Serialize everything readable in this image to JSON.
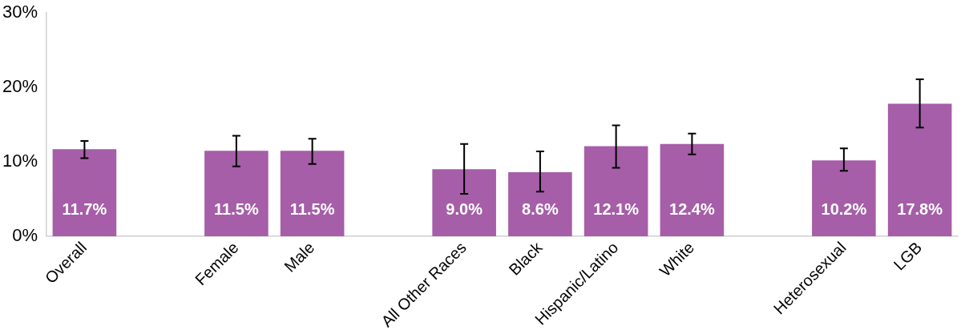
{
  "chart_data": {
    "type": "bar",
    "categories": [
      "Overall",
      null,
      "Female",
      "Male",
      null,
      "All Other Races",
      "Black",
      "Hispanic/Latino",
      "White",
      null,
      "Heterosexual",
      "LGB"
    ],
    "values": [
      11.7,
      null,
      11.5,
      11.5,
      null,
      9.0,
      8.6,
      12.1,
      12.4,
      null,
      10.2,
      17.8
    ],
    "value_labels": [
      "11.7%",
      null,
      "11.5%",
      "11.5%",
      null,
      "9.0%",
      "8.6%",
      "12.1%",
      "12.4%",
      null,
      "10.2%",
      "17.8%"
    ],
    "errors": [
      [
        10.5,
        12.8
      ],
      null,
      [
        9.4,
        13.5
      ],
      [
        9.7,
        13.1
      ],
      null,
      [
        5.7,
        12.4
      ],
      [
        6.0,
        11.4
      ],
      [
        9.2,
        14.9
      ],
      [
        11.0,
        13.8
      ],
      null,
      [
        8.8,
        11.8
      ],
      [
        14.6,
        21.1
      ]
    ],
    "color": "#a65ea8",
    "ylim": [
      0,
      30
    ],
    "yticks": [
      {
        "value": 0,
        "label": "0%"
      },
      {
        "value": 10,
        "label": "10%"
      },
      {
        "value": 20,
        "label": "20%"
      },
      {
        "value": 30,
        "label": "30%"
      }
    ],
    "grid": false,
    "legend": false
  }
}
